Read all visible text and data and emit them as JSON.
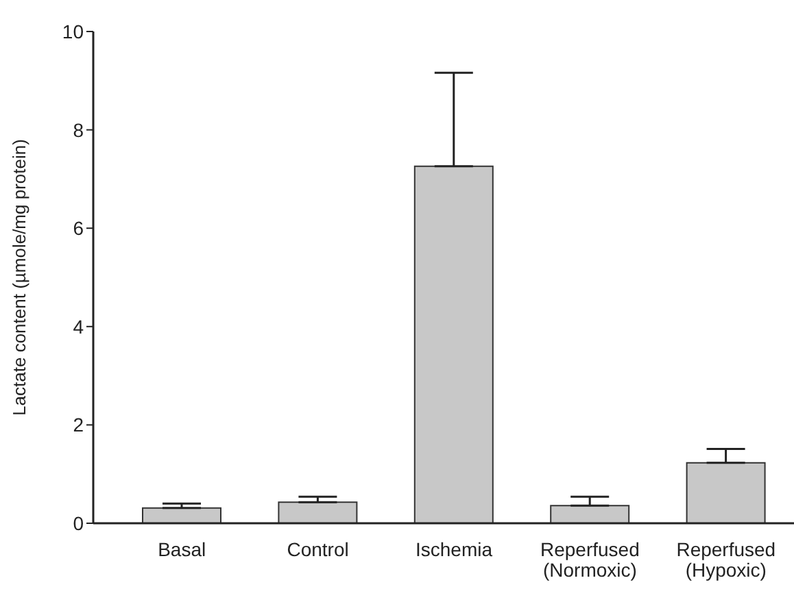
{
  "chart_data": {
    "type": "bar",
    "ylabel": "Lactate content (µmole/mg protein)",
    "categories": [
      "Basal",
      "Control",
      "Ischemia",
      "Reperfused\n(Normoxic)",
      "Reperfused\n(Hypoxic)"
    ],
    "values": [
      0.31,
      0.43,
      7.26,
      0.36,
      1.23
    ],
    "errors": [
      [
        0.31,
        0.4
      ],
      [
        0.43,
        0.54
      ],
      [
        7.26,
        9.16
      ],
      [
        0.36,
        0.54
      ],
      [
        1.23,
        1.51
      ]
    ],
    "color": "#c8c8c8",
    "ylim": [
      0,
      10
    ],
    "yticks": [
      0,
      2,
      4,
      6,
      8,
      10
    ],
    "grid": false,
    "legend": false
  }
}
